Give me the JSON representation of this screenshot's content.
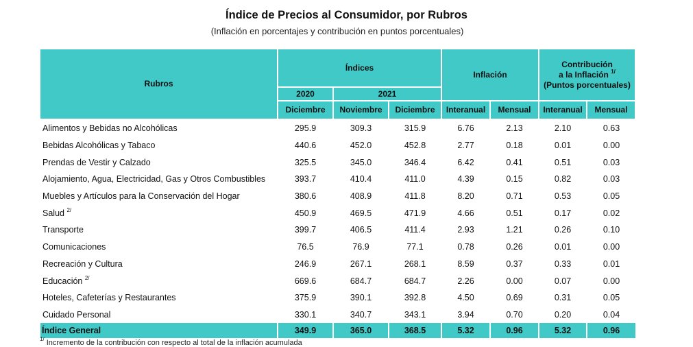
{
  "title": "Índice de Precios al Consumidor, por Rubros",
  "subtitle": "(Inflación en porcentajes y contribución en puntos porcentuales)",
  "headers": {
    "rubros": "Rubros",
    "indices": "Índices",
    "year_2020": "2020",
    "year_2021": "2021",
    "diciembre_2020": "Diciembre",
    "noviembre_2021": "Noviembre",
    "diciembre_2021": "Diciembre",
    "inflacion": "Inflación",
    "interanual": "Interanual",
    "mensual": "Mensual",
    "contribucion_line1": "Contribución",
    "contribucion_line2": "a la Inflación",
    "contribucion_sup": "1/",
    "contribucion_line3": "(Puntos porcentuales)",
    "contrib_interanual": "Interanual",
    "contrib_mensual": "Mensual"
  },
  "rows": [
    {
      "name": "Alimentos y Bebidas no Alcohólicas",
      "sup": "",
      "values": [
        "295.9",
        "309.3",
        "315.9",
        "6.76",
        "2.13",
        "2.10",
        "0.63"
      ]
    },
    {
      "name": "Bebidas Alcohólicas y Tabaco",
      "sup": "",
      "values": [
        "440.6",
        "452.0",
        "452.8",
        "2.77",
        "0.18",
        "0.01",
        "0.00"
      ]
    },
    {
      "name": "Prendas de Vestir y Calzado",
      "sup": "",
      "values": [
        "325.5",
        "345.0",
        "346.4",
        "6.42",
        "0.41",
        "0.51",
        "0.03"
      ]
    },
    {
      "name": "Alojamiento, Agua, Electricidad, Gas y Otros Combustibles",
      "sup": "",
      "values": [
        "393.7",
        "410.4",
        "411.0",
        "4.39",
        "0.15",
        "0.82",
        "0.03"
      ]
    },
    {
      "name": "Muebles y Artículos para la Conservación del Hogar",
      "sup": "",
      "values": [
        "380.6",
        "408.9",
        "411.8",
        "8.20",
        "0.71",
        "0.53",
        "0.05"
      ]
    },
    {
      "name": "Salud",
      "sup": "2/",
      "values": [
        "450.9",
        "469.5",
        "471.9",
        "4.66",
        "0.51",
        "0.17",
        "0.02"
      ]
    },
    {
      "name": "Transporte",
      "sup": "",
      "values": [
        "399.7",
        "406.5",
        "411.4",
        "2.93",
        "1.21",
        "0.26",
        "0.10"
      ]
    },
    {
      "name": "Comunicaciones",
      "sup": "",
      "values": [
        "76.5",
        "76.9",
        "77.1",
        "0.78",
        "0.26",
        "0.01",
        "0.00"
      ]
    },
    {
      "name": "Recreación y Cultura",
      "sup": "",
      "values": [
        "246.9",
        "267.1",
        "268.1",
        "8.59",
        "0.37",
        "0.33",
        "0.01"
      ]
    },
    {
      "name": "Educación",
      "sup": "2/",
      "values": [
        "669.6",
        "684.7",
        "684.7",
        "2.26",
        "0.00",
        "0.07",
        "0.00"
      ]
    },
    {
      "name": "Hoteles, Cafeterías y Restaurantes",
      "sup": "",
      "values": [
        "375.9",
        "390.1",
        "392.8",
        "4.50",
        "0.69",
        "0.31",
        "0.05"
      ]
    },
    {
      "name": "Cuidado Personal",
      "sup": "",
      "values": [
        "330.1",
        "340.7",
        "343.1",
        "3.94",
        "0.70",
        "0.20",
        "0.04"
      ]
    }
  ],
  "total": {
    "name": "Índice General",
    "values": [
      "349.9",
      "365.0",
      "368.5",
      "5.32",
      "0.96",
      "5.32",
      "0.96"
    ]
  },
  "footnote": {
    "sup": "1/",
    "text": "Incremento de la contribución con respecto al total de la inflación acumulada"
  },
  "colors": {
    "header_bg": "#40c9c7"
  }
}
